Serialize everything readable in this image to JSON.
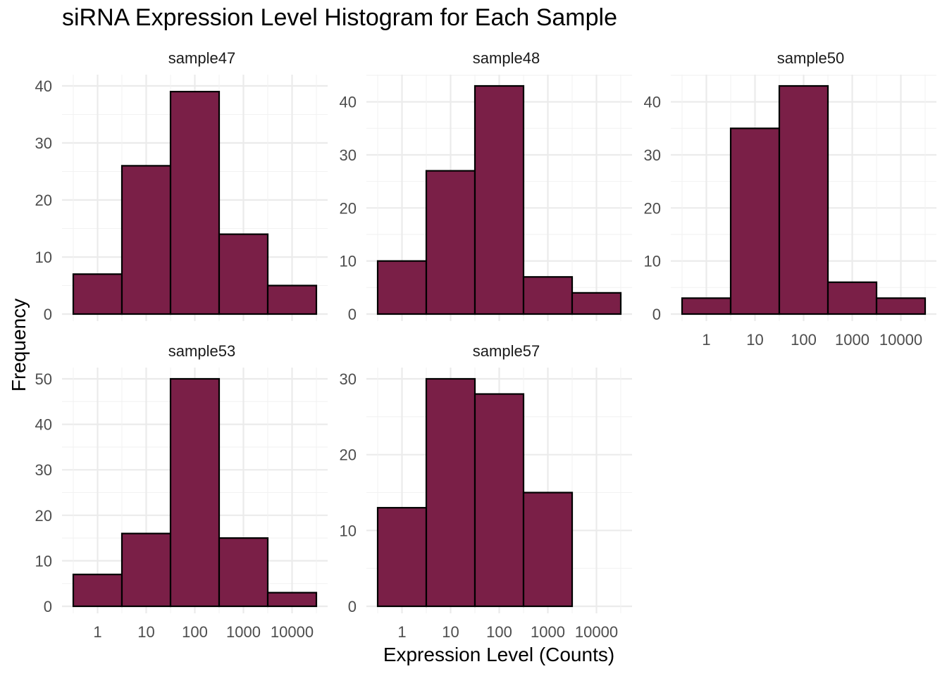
{
  "chart_data": {
    "type": "bar",
    "title": "siRNA Expression Level Histogram for Each Sample",
    "xlabel": "Expression Level (Counts)",
    "ylabel": "Frequency",
    "x_scale": "log10",
    "x_tick_labels": [
      "1",
      "10",
      "100",
      "1000",
      "10000"
    ],
    "bar_color": "#7A1F47",
    "bar_outline": "#000000",
    "grid": true,
    "panels": [
      {
        "name": "sample47",
        "bin_counts": [
          7,
          26,
          39,
          14,
          5
        ],
        "ylim": [
          0,
          40
        ],
        "y_ticks": [
          0,
          10,
          20,
          30,
          40
        ]
      },
      {
        "name": "sample48",
        "bin_counts": [
          10,
          27,
          43,
          7,
          4
        ],
        "ylim": [
          0,
          43
        ],
        "y_ticks": [
          0,
          10,
          20,
          30,
          40
        ]
      },
      {
        "name": "sample50",
        "bin_counts": [
          3,
          35,
          43,
          6,
          3
        ],
        "ylim": [
          0,
          43
        ],
        "y_ticks": [
          0,
          10,
          20,
          30,
          40
        ]
      },
      {
        "name": "sample53",
        "bin_counts": [
          7,
          16,
          50,
          15,
          3
        ],
        "ylim": [
          0,
          50
        ],
        "y_ticks": [
          0,
          10,
          20,
          30,
          40,
          50
        ]
      },
      {
        "name": "sample57",
        "bin_counts": [
          13,
          30,
          28,
          15,
          0
        ],
        "ylim": [
          0,
          30
        ],
        "y_ticks": [
          0,
          10,
          20,
          30
        ]
      }
    ]
  }
}
